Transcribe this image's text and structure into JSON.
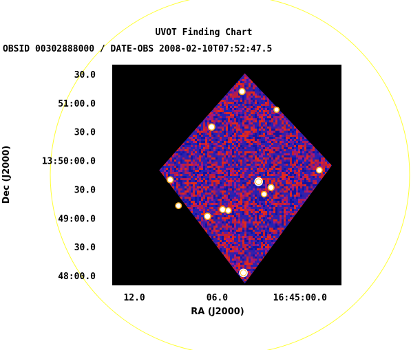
{
  "chart_data": {
    "type": "image",
    "title": "UVOT Finding Chart",
    "subtitle": "OBSID 00302888000 / DATE-OBS 2008-02-10T07:52:47.5",
    "xlabel": "RA (J2000)",
    "ylabel": "Dec (J2000)",
    "x_ticks": [
      {
        "label": "12.0",
        "ra_sec": 12.0
      },
      {
        "label": "06.0",
        "ra_sec": 6.0
      },
      {
        "label": "16:45:00.0",
        "ra_sec": 0.0
      }
    ],
    "y_ticks": [
      {
        "label": "30.0",
        "dec_arcsec": 90
      },
      {
        "label": "51:00.0",
        "dec_arcsec": 60
      },
      {
        "label": "30.0",
        "dec_arcsec": 30
      },
      {
        "label": "13:50:00.0",
        "dec_arcsec": 0
      },
      {
        "label": "30.0",
        "dec_arcsec": -30
      },
      {
        "label": "49:00.0",
        "dec_arcsec": -60
      },
      {
        "label": "30.0",
        "dec_arcsec": -90
      },
      {
        "label": "48:00.0",
        "dec_arcsec": -120
      }
    ],
    "xlim_ra_sec": [
      13.6,
      -3.0
    ],
    "ylim_dec_arcsec": [
      100,
      -130
    ],
    "field_diamond_vertices": [
      {
        "ra_sec": 4.0,
        "dec_arcsec": 91
      },
      {
        "ra_sec": -2.3,
        "dec_arcsec": -5
      },
      {
        "ra_sec": 4.0,
        "dec_arcsec": -128
      },
      {
        "ra_sec": 10.2,
        "dec_arcsec": -10
      }
    ],
    "sources": [
      {
        "ra_sec": 4.2,
        "dec_arcsec": 72,
        "brightness": 0.9
      },
      {
        "ra_sec": 1.7,
        "dec_arcsec": 53,
        "brightness": 0.6
      },
      {
        "ra_sec": 6.4,
        "dec_arcsec": 35,
        "brightness": 1.0
      },
      {
        "ra_sec": -1.4,
        "dec_arcsec": -10,
        "brightness": 0.8
      },
      {
        "ra_sec": 9.4,
        "dec_arcsec": -20,
        "brightness": 0.9
      },
      {
        "ra_sec": 3.0,
        "dec_arcsec": -22,
        "brightness": 1.0
      },
      {
        "ra_sec": 2.1,
        "dec_arcsec": -28,
        "brightness": 0.9
      },
      {
        "ra_sec": 2.6,
        "dec_arcsec": -35,
        "brightness": 0.7
      },
      {
        "ra_sec": 8.8,
        "dec_arcsec": -47,
        "brightness": 0.8
      },
      {
        "ra_sec": 5.6,
        "dec_arcsec": -51,
        "brightness": 0.9
      },
      {
        "ra_sec": 5.2,
        "dec_arcsec": -52,
        "brightness": 0.8
      },
      {
        "ra_sec": 6.7,
        "dec_arcsec": -58,
        "brightness": 1.0
      },
      {
        "ra_sec": 4.1,
        "dec_arcsec": -117,
        "brightness": 1.0
      }
    ],
    "markers": [
      {
        "ra_sec": 3.0,
        "dec_arcsec": -22,
        "shape": "circle"
      },
      {
        "ra_sec": 4.1,
        "dec_arcsec": -117,
        "shape": "circle"
      }
    ],
    "large_circle": {
      "shape": "circle",
      "color": "#ffff33"
    },
    "colors": {
      "background": "#000000",
      "noise_low": "#1a1aa8",
      "noise_high": "#d01c1c",
      "source": "#ffffff",
      "marker": "#ffffff",
      "large_circle": "#ffff33"
    },
    "grid": false
  }
}
